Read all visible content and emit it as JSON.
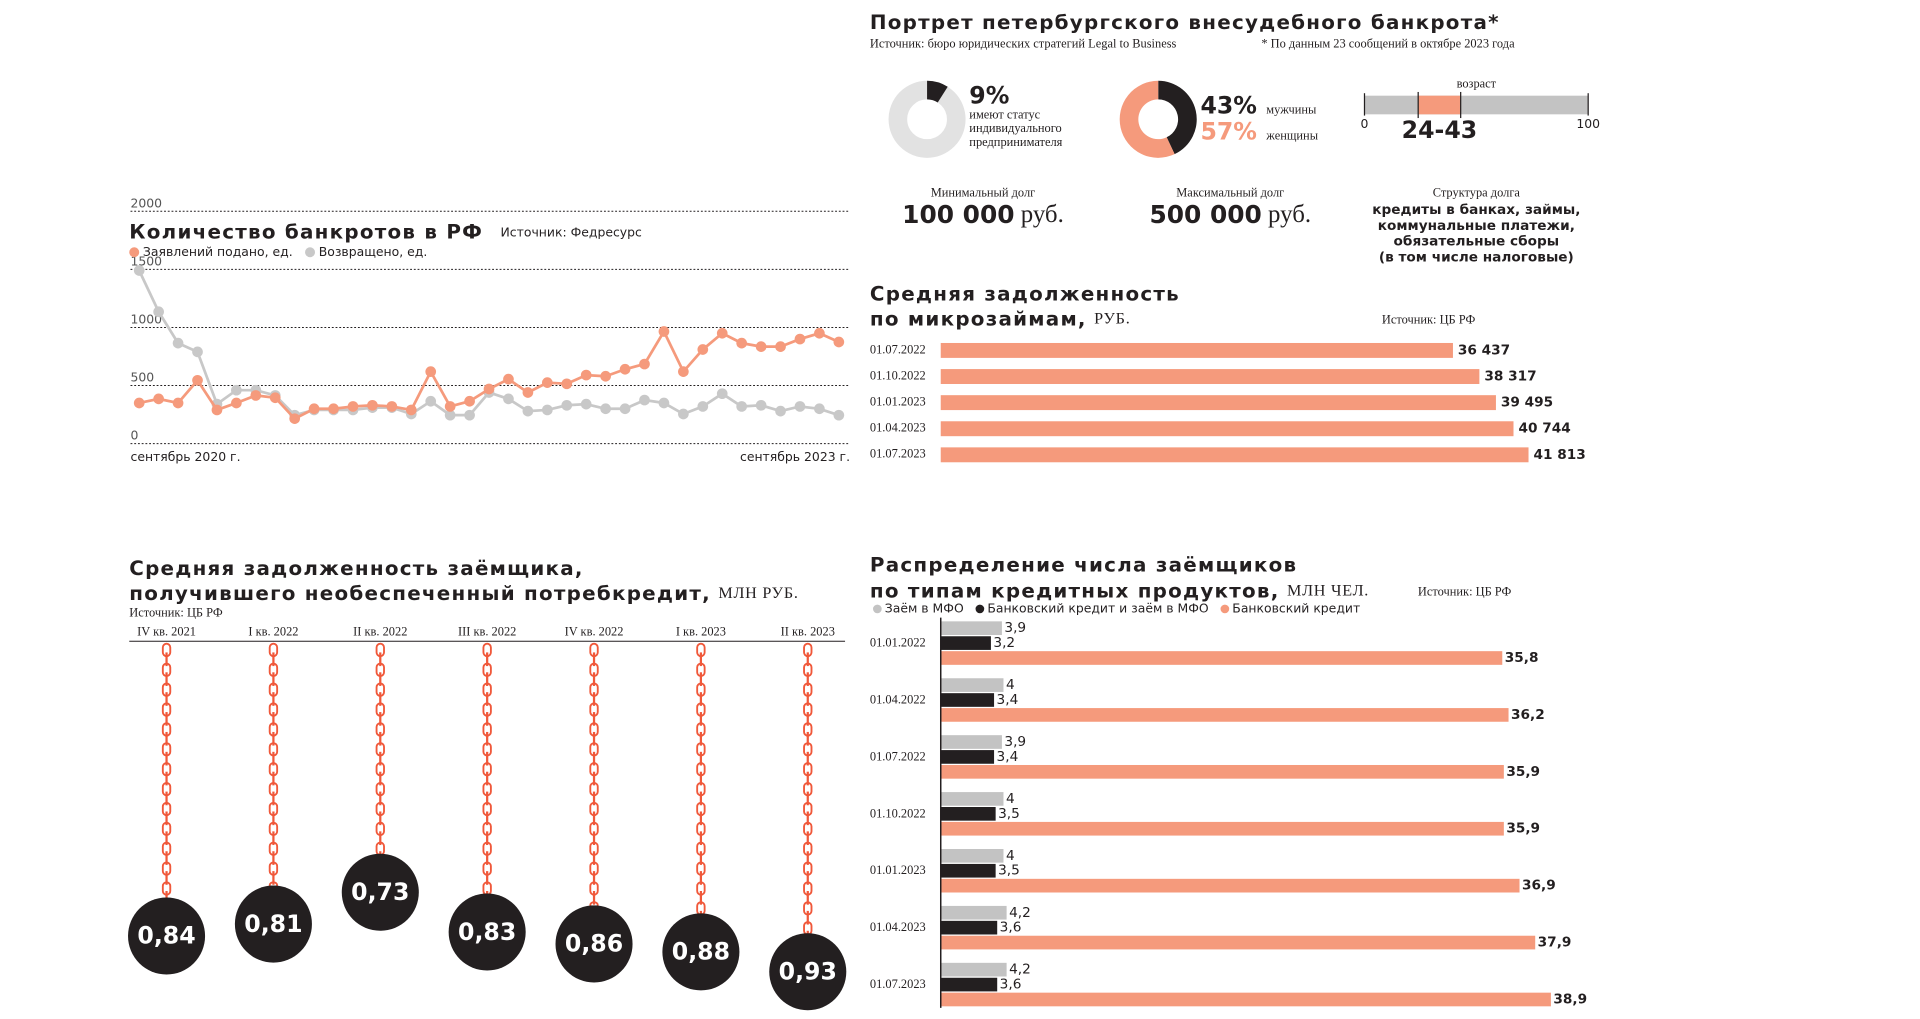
{
  "portrait": {
    "title": "Портрет петербургского внесудебного банкрота*",
    "source": "Источник: бюро юридических стратегий Legal to Business",
    "note": "* По данным 23 сообщений в октябре 2023 года",
    "age": {
      "label": "возраст",
      "xlim": [
        0,
        100
      ],
      "xticks": [
        0,
        100
      ],
      "range": [
        24,
        43
      ],
      "range_label": "24-43"
    },
    "min_debt": {
      "label": "Минимальный долг",
      "value": "100 000",
      "unit": "руб."
    },
    "max_debt": {
      "label": "Максимальный долг",
      "value": "500 000",
      "unit": "руб."
    },
    "debt_structure": {
      "label": "Структура долга",
      "lines": [
        "кредиты в банках, займы,",
        "коммунальные платежи,",
        "обязательные сборы",
        "(в том числе налоговые)"
      ]
    }
  },
  "chart_data": [
    {
      "type": "pie",
      "values": [
        9
      ],
      "value_labels": [
        "9%"
      ],
      "colors": [
        "#231f20"
      ],
      "background": "#e2e2e2",
      "caption": [
        "имеют статус",
        "индивидуального",
        "предпринимателя"
      ]
    },
    {
      "type": "pie",
      "categories": [
        "мужчины",
        "женщины"
      ],
      "values": [
        43,
        57
      ],
      "value_labels": [
        "43%",
        "57%"
      ],
      "colors": [
        "#231f20",
        "#f59a7c"
      ]
    },
    {
      "type": "line",
      "title": "Количество банкротов в РФ",
      "source": "Источник: Федресурс",
      "categories": [
        "сентябрь 2020 г.",
        null,
        null,
        null,
        null,
        null,
        null,
        null,
        null,
        null,
        null,
        null,
        null,
        null,
        null,
        null,
        null,
        null,
        null,
        null,
        null,
        null,
        null,
        null,
        null,
        null,
        null,
        null,
        null,
        null,
        null,
        null,
        null,
        null,
        null,
        null,
        "сентябрь 2023 г."
      ],
      "series": [
        {
          "name": "Заявлений подано, ед.",
          "color": "#f59a7c",
          "values": [
            350,
            385,
            350,
            545,
            290,
            350,
            415,
            395,
            215,
            300,
            300,
            320,
            330,
            320,
            290,
            620,
            320,
            365,
            470,
            555,
            440,
            525,
            515,
            590,
            580,
            640,
            685,
            965,
            620,
            810,
            950,
            865,
            835,
            835,
            900,
            950,
            875
          ]
        },
        {
          "name": "Возвращено, ед.",
          "color": "#c8c8c8",
          "values": [
            1490,
            1135,
            865,
            790,
            340,
            460,
            460,
            415,
            245,
            290,
            290,
            290,
            310,
            310,
            255,
            365,
            245,
            245,
            440,
            385,
            280,
            290,
            330,
            340,
            300,
            300,
            375,
            350,
            255,
            320,
            430,
            320,
            330,
            280,
            320,
            300,
            245
          ]
        }
      ],
      "ylim": [
        0,
        2000
      ],
      "yticks": [
        0,
        500,
        1000,
        1500,
        2000
      ],
      "grid": true
    },
    {
      "type": "bar",
      "title": [
        "Средняя задолженность",
        "по микрозаймам,"
      ],
      "unit": "РУБ.",
      "source": "Источник: ЦБ РФ",
      "categories": [
        "01.07.2022",
        "01.10.2022",
        "01.01.2023",
        "01.04.2023",
        "01.07.2023"
      ],
      "values": [
        36437,
        38317,
        39495,
        40744,
        41813
      ],
      "value_labels": [
        "36 437",
        "38 317",
        "39 495",
        "40 744",
        "41 813"
      ],
      "color": "#f59a7c"
    },
    {
      "type": "pendulum",
      "title": [
        "Средняя задолженность заёмщика,",
        "получившего необеспеченный потребкредит,"
      ],
      "unit": "МЛН РУБ.",
      "source": "Источник: ЦБ РФ",
      "categories": [
        "IV кв. 2021",
        "I кв. 2022",
        "II кв. 2022",
        "III кв. 2022",
        "IV кв. 2022",
        "I кв. 2023",
        "II кв. 2023"
      ],
      "values": [
        0.84,
        0.81,
        0.73,
        0.83,
        0.86,
        0.88,
        0.93
      ],
      "value_labels": [
        "0,84",
        "0,81",
        "0,73",
        "0,83",
        "0,86",
        "0,88",
        "0,93"
      ],
      "color": "#f0583a",
      "ball_color": "#231f20"
    },
    {
      "type": "bar",
      "title": [
        "Распределение числа заёмщиков",
        "по типам кредитных продуктов,"
      ],
      "unit": "МЛН ЧЕЛ.",
      "source": "Источник: ЦБ РФ",
      "categories": [
        "01.01.2022",
        "01.04.2022",
        "01.07.2022",
        "01.10.2022",
        "01.01.2023",
        "01.04.2023",
        "01.07.2023"
      ],
      "series": [
        {
          "name": "Заём в МФО",
          "color": "#c3c3c3",
          "values": [
            3.9,
            4,
            3.9,
            4,
            4,
            4.2,
            4.2
          ],
          "value_labels": [
            "3,9",
            "4",
            "3,9",
            "4",
            "4",
            "4,2",
            "4,2"
          ]
        },
        {
          "name": "Банковский кредит и заём в МФО",
          "color": "#231f20",
          "values": [
            3.2,
            3.4,
            3.4,
            3.5,
            3.5,
            3.6,
            3.6
          ],
          "value_labels": [
            "3,2",
            "3,4",
            "3,4",
            "3,5",
            "3,5",
            "3,6",
            "3,6"
          ]
        },
        {
          "name": "Банковский кредит",
          "color": "#f59a7c",
          "values": [
            35.8,
            36.2,
            35.9,
            35.9,
            36.9,
            37.9,
            38.9
          ],
          "value_labels": [
            "35,8",
            "36,2",
            "35,9",
            "35,9",
            "36,9",
            "37,9",
            "38,9"
          ]
        }
      ]
    }
  ]
}
